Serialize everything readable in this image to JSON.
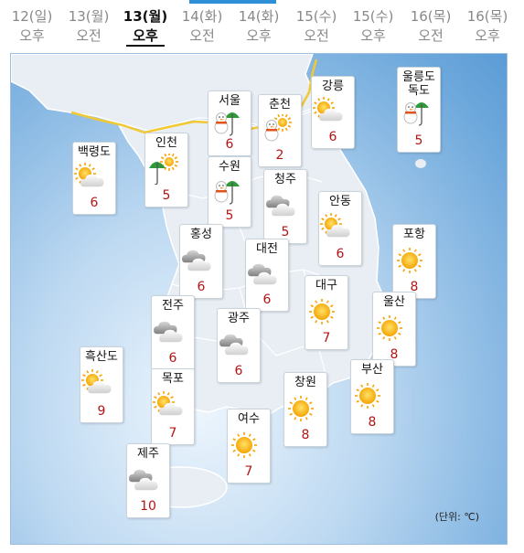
{
  "tabs": [
    {
      "date": "12(일)",
      "period": "오후",
      "active": false
    },
    {
      "date": "13(월)",
      "period": "오전",
      "active": false
    },
    {
      "date": "13(월)",
      "period": "오후",
      "active": true
    },
    {
      "date": "14(화)",
      "period": "오전",
      "active": false
    },
    {
      "date": "14(화)",
      "period": "오후",
      "active": false
    },
    {
      "date": "15(수)",
      "period": "오전",
      "active": false
    },
    {
      "date": "15(수)",
      "period": "오후",
      "active": false
    },
    {
      "date": "16(목)",
      "period": "오전",
      "active": false
    },
    {
      "date": "16(목)",
      "period": "오후",
      "active": false
    }
  ],
  "cities": [
    {
      "name": "서울",
      "temp": "6",
      "icon": "snowman-umbrella-icon"
    },
    {
      "name": "춘천",
      "temp": "2",
      "icon": "snowman-sun-icon"
    },
    {
      "name": "강릉",
      "temp": "6",
      "icon": "sun-cloud-icon"
    },
    {
      "name": "울릉도\n독도",
      "temp": "5",
      "icon": "snowman-umbrella-icon"
    },
    {
      "name": "백령도",
      "temp": "6",
      "icon": "sun-cloud-icon"
    },
    {
      "name": "인천",
      "temp": "5",
      "icon": "sun-umbrella-icon"
    },
    {
      "name": "수원",
      "temp": "5",
      "icon": "snowman-umbrella-icon"
    },
    {
      "name": "청주",
      "temp": "5",
      "icon": "cloudy-icon"
    },
    {
      "name": "안동",
      "temp": "6",
      "icon": "sun-cloud-icon"
    },
    {
      "name": "홍성",
      "temp": "6",
      "icon": "cloudy-icon"
    },
    {
      "name": "대전",
      "temp": "6",
      "icon": "cloudy-icon"
    },
    {
      "name": "포항",
      "temp": "8",
      "icon": "sun-icon"
    },
    {
      "name": "대구",
      "temp": "7",
      "icon": "sun-icon"
    },
    {
      "name": "전주",
      "temp": "6",
      "icon": "cloudy-icon"
    },
    {
      "name": "광주",
      "temp": "6",
      "icon": "cloudy-icon"
    },
    {
      "name": "울산",
      "temp": "8",
      "icon": "sun-icon"
    },
    {
      "name": "흑산도",
      "temp": "9",
      "icon": "sun-cloud-icon"
    },
    {
      "name": "목포",
      "temp": "7",
      "icon": "sun-cloud-icon"
    },
    {
      "name": "창원",
      "temp": "8",
      "icon": "sun-icon"
    },
    {
      "name": "부산",
      "temp": "8",
      "icon": "sun-icon"
    },
    {
      "name": "여수",
      "temp": "7",
      "icon": "sun-icon"
    },
    {
      "name": "제주",
      "temp": "10",
      "icon": "cloudy-icon"
    }
  ],
  "unit_label": "(단위: ℃)",
  "colors": {
    "temp": "#b41414",
    "accent": "#2f8fd6",
    "land": "#e7edf3",
    "sea": "#6fa9dc"
  }
}
